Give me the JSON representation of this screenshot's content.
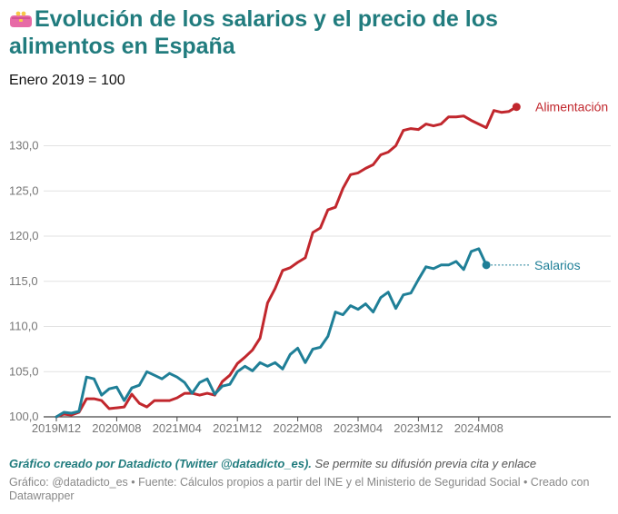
{
  "header": {
    "title_icon": "purse-icon",
    "title": "Evolución de los salarios y el precio de los alimentos en España",
    "subtitle": "Enero 2019 = 100"
  },
  "footer": {
    "credit_bold": "Gráfico creado por Datadicto (Twitter @datadicto_es).",
    "credit_rest": " Se permite su difusión previa cita y enlace",
    "source": "Gráfico: @datadicto_es • Fuente: Cálculos propios a partir del INE y el Ministerio de Seguridad Social • Creado con Datawrapper"
  },
  "chart_data": {
    "type": "line",
    "x_start": "2019M12",
    "x_ticks": [
      "2019M12",
      "2020M08",
      "2021M04",
      "2021M12",
      "2022M08",
      "2023M04",
      "2023M12",
      "2024M08"
    ],
    "yticks": [
      100,
      105,
      110,
      115,
      120,
      125,
      130
    ],
    "ytick_labels": [
      "100,0",
      "105,0",
      "110,0",
      "115,0",
      "120,0",
      "125,0",
      "130,0"
    ],
    "ylim": [
      99.5,
      135.5
    ],
    "grid": true,
    "colors": {
      "alimentacion": "#c1272d",
      "salarios": "#1f7f97"
    },
    "series": [
      {
        "name": "Alimentación",
        "values": [
          100.0,
          100.3,
          100.2,
          100.5,
          102.0,
          102.0,
          101.8,
          100.9,
          101.0,
          101.1,
          102.5,
          101.5,
          101.1,
          101.8,
          101.8,
          101.8,
          102.1,
          102.6,
          102.6,
          102.4,
          102.6,
          102.4,
          103.9,
          104.6,
          105.9,
          106.6,
          107.4,
          108.7,
          112.6,
          114.2,
          116.2,
          116.5,
          117.1,
          117.6,
          120.4,
          120.9,
          122.9,
          123.2,
          125.3,
          126.8,
          127.0,
          127.5,
          127.9,
          129.0,
          129.3,
          130.0,
          131.7,
          131.9,
          131.8,
          132.4,
          132.2,
          132.4,
          133.2,
          133.2,
          133.3,
          132.8,
          132.4,
          132.0,
          133.9,
          133.7,
          133.8,
          134.3
        ]
      },
      {
        "name": "Salarios",
        "values": [
          100.0,
          100.5,
          100.4,
          100.6,
          104.4,
          104.2,
          102.4,
          103.1,
          103.3,
          101.8,
          103.2,
          103.5,
          105.0,
          104.6,
          104.2,
          104.8,
          104.4,
          103.8,
          102.6,
          103.8,
          104.2,
          102.5,
          103.4,
          103.6,
          105.0,
          105.6,
          105.1,
          106.0,
          105.6,
          106.0,
          105.3,
          106.9,
          107.6,
          106.0,
          107.5,
          107.7,
          108.9,
          111.6,
          111.3,
          112.3,
          111.9,
          112.5,
          111.6,
          113.2,
          113.8,
          112.0,
          113.5,
          113.7,
          115.2,
          116.6,
          116.4,
          116.8,
          116.8,
          117.2,
          116.3,
          118.3,
          118.6,
          116.8
        ]
      }
    ]
  }
}
